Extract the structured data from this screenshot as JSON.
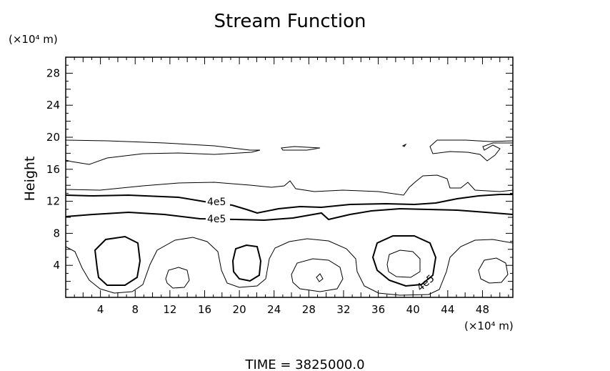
{
  "chart_data": {
    "type": "contour",
    "title": "Stream Function",
    "ylabel": "Height",
    "y_unit": "(×10⁴ m)",
    "x_unit": "(×10⁴ m)",
    "xlim": [
      0,
      51.5
    ],
    "ylim": [
      0,
      30
    ],
    "xticks": [
      4,
      8,
      12,
      16,
      20,
      24,
      28,
      32,
      36,
      40,
      44,
      48
    ],
    "yticks": [
      4,
      8,
      12,
      16,
      20,
      24,
      28
    ],
    "contour_labels": [
      "4e5",
      "4e5",
      "4e5"
    ],
    "footer": "TIME = 3825000.0"
  }
}
